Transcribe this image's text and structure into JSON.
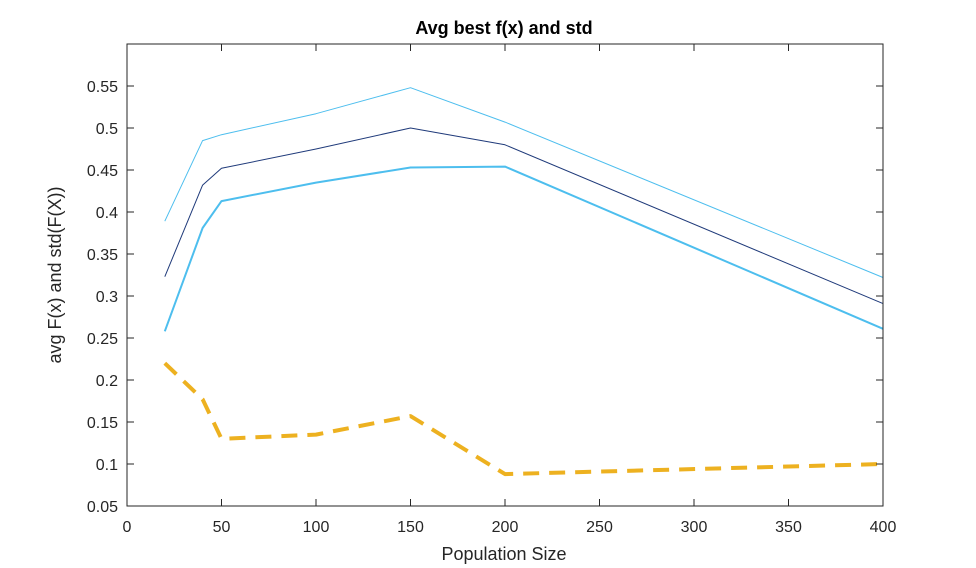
{
  "chart_data": {
    "type": "line",
    "title": "Avg best f(x) and std",
    "xlabel": "Population Size",
    "ylabel": "avg F(x) and std(F(X))",
    "xlim": [
      0,
      400
    ],
    "ylim": [
      0.05,
      0.6
    ],
    "xticks": [
      0,
      50,
      100,
      150,
      200,
      250,
      300,
      350,
      400
    ],
    "xtick_labels": [
      "0",
      "50",
      "100",
      "150",
      "200",
      "250",
      "300",
      "350",
      "400"
    ],
    "yticks": [
      0.05,
      0.1,
      0.15,
      0.2,
      0.25,
      0.3,
      0.35,
      0.4,
      0.45,
      0.5,
      0.55
    ],
    "ytick_labels": [
      "0.05",
      "0.1",
      "0.15",
      "0.2",
      "0.25",
      "0.3",
      "0.35",
      "0.4",
      "0.45",
      "0.5",
      "0.55"
    ],
    "grid": false,
    "legend": "none",
    "x": [
      20,
      40,
      50,
      100,
      150,
      200,
      400
    ],
    "series": [
      {
        "values": [
          0.389,
          0.485,
          0.492,
          0.517,
          0.548,
          0.507,
          0.322
        ],
        "color": "#4dbeee",
        "style": "solid",
        "width": 1
      },
      {
        "values": [
          0.323,
          0.432,
          0.452,
          0.475,
          0.5,
          0.48,
          0.291
        ],
        "color": "#1f3a7a",
        "style": "solid",
        "width": 1
      },
      {
        "values": [
          0.258,
          0.381,
          0.413,
          0.435,
          0.453,
          0.454,
          0.261
        ],
        "color": "#4dbeee",
        "style": "solid",
        "width": 2
      },
      {
        "values": [
          0.22,
          0.177,
          0.13,
          0.135,
          0.157,
          0.088,
          0.1
        ],
        "color": "#edb120",
        "style": "dashed",
        "width": 4
      }
    ]
  }
}
